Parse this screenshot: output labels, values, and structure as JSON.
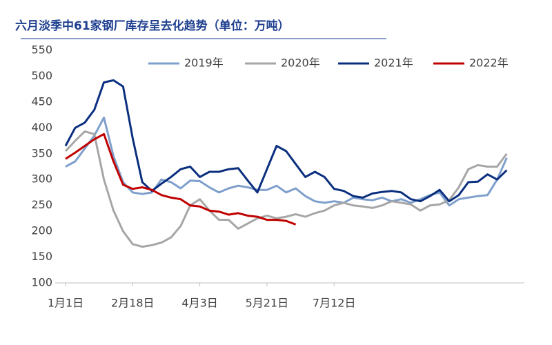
{
  "chart_data": {
    "type": "line",
    "title": "六月淡季中61家钢厂库存呈去化趋势（单位：万吨）",
    "categories": [
      "1月1日",
      null,
      null,
      null,
      null,
      null,
      null,
      "2月18日",
      null,
      null,
      null,
      null,
      null,
      null,
      "4月3日",
      null,
      null,
      null,
      null,
      null,
      null,
      "5月21日",
      null,
      null,
      null,
      null,
      null,
      null,
      "7月12日",
      null,
      null,
      null,
      null,
      null,
      null,
      null,
      null,
      null,
      null,
      null,
      null,
      null,
      null,
      null,
      null,
      null,
      null
    ],
    "series": [
      {
        "name": "2019年",
        "color": "#7f9fcc",
        "values": [
          325,
          335,
          360,
          385,
          420,
          345,
          295,
          275,
          272,
          275,
          300,
          295,
          283,
          298,
          297,
          285,
          275,
          283,
          288,
          285,
          280,
          280,
          288,
          275,
          283,
          268,
          258,
          255,
          258,
          255,
          265,
          262,
          260,
          265,
          258,
          262,
          255,
          262,
          270,
          275,
          250,
          262,
          265,
          268,
          270,
          300,
          342
        ]
      },
      {
        "name": "2020年",
        "color": "#a6a6a6",
        "values": [
          355,
          375,
          393,
          388,
          300,
          240,
          200,
          175,
          170,
          173,
          178,
          188,
          210,
          250,
          262,
          240,
          222,
          222,
          205,
          215,
          225,
          230,
          225,
          228,
          233,
          228,
          235,
          240,
          250,
          255,
          250,
          248,
          245,
          250,
          258,
          255,
          252,
          240,
          250,
          252,
          260,
          285,
          320,
          328,
          325,
          325,
          350
        ]
      },
      {
        "name": "2021年",
        "color": "#0b2f7f",
        "values": [
          365,
          400,
          410,
          435,
          488,
          492,
          480,
          380,
          295,
          278,
          292,
          305,
          320,
          325,
          305,
          315,
          315,
          320,
          322,
          298,
          275,
          320,
          365,
          355,
          330,
          305,
          315,
          305,
          282,
          278,
          268,
          265,
          273,
          276,
          278,
          275,
          262,
          258,
          268,
          280,
          258,
          270,
          295,
          296,
          310,
          300,
          318
        ]
      },
      {
        "name": "2022年",
        "color": "#c00000",
        "values": [
          340,
          352,
          365,
          378,
          388,
          335,
          290,
          282,
          285,
          280,
          270,
          265,
          262,
          250,
          248,
          240,
          238,
          232,
          235,
          230,
          228,
          222,
          222,
          220,
          213,
          null,
          null,
          null,
          null,
          null,
          null,
          null,
          null,
          null,
          null,
          null,
          null,
          null,
          null,
          null,
          null,
          null,
          null,
          null,
          null,
          null,
          null
        ]
      }
    ],
    "ylim": [
      100,
      550
    ],
    "yticks": [
      100,
      150,
      200,
      250,
      300,
      350,
      400,
      450,
      500,
      550
    ],
    "legend": "top-right"
  }
}
